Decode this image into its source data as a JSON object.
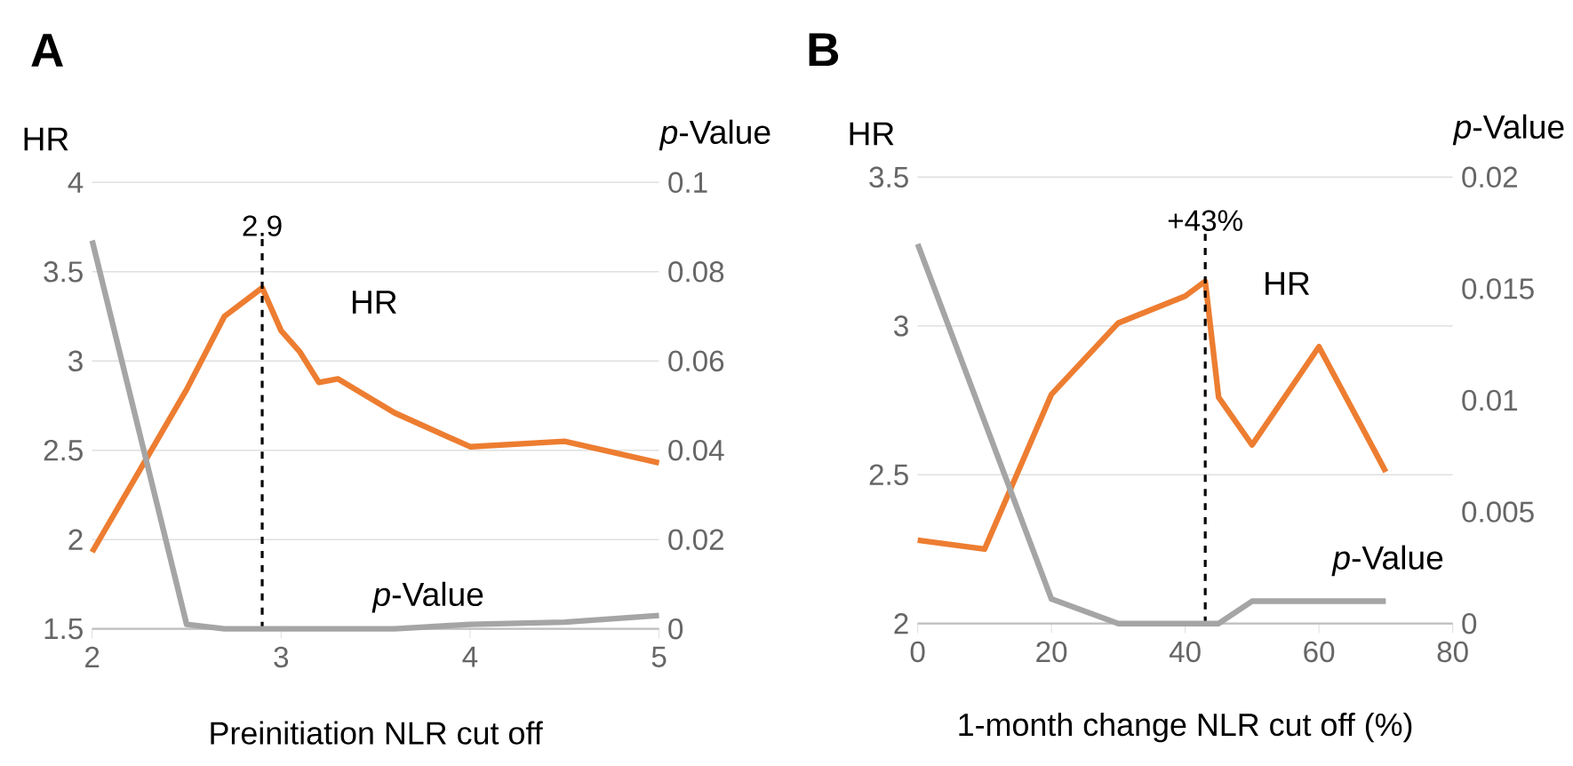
{
  "chart_data": [
    {
      "type": "line",
      "title": "A",
      "xlabel": "Preinitiation NLR cut off",
      "ylabel": "HR",
      "y2label": "*p*-Value",
      "xlim": [
        2,
        5
      ],
      "xticks": [
        2,
        3,
        4,
        5
      ],
      "ylim": [
        1.5,
        4
      ],
      "yticks": [
        1.5,
        2,
        2.5,
        3,
        3.5,
        4
      ],
      "y2lim": [
        0,
        0.1
      ],
      "y2ticks": [
        0,
        0.02,
        0.04,
        0.06,
        0.08,
        0.1
      ],
      "grid": "y",
      "series": [
        {
          "color": "#ed7d31",
          "x": [
            2,
            2.5,
            2.7,
            2.9,
            3.0,
            3.1,
            3.2,
            3.3,
            3.6,
            4.0,
            4.5,
            5
          ],
          "values": [
            1.93,
            2.84,
            3.25,
            3.41,
            3.17,
            3.05,
            2.88,
            2.9,
            2.71,
            2.52,
            2.55,
            2.43
          ]
        },
        {
          "color": "#a5a5a5",
          "axis": "y2",
          "x": [
            2,
            2.5,
            2.7,
            3.0,
            3.6,
            4.0,
            4.5,
            5
          ],
          "values": [
            0.087,
            0.001,
            0,
            0,
            0,
            0.001,
            0.0015,
            0.003
          ]
        }
      ],
      "ref_lines": [
        {
          "axis": "x",
          "value": 2.9,
          "label": "2.9",
          "color": "#000000",
          "line_style": "dashed"
        }
      ],
      "annotations": [
        "HR",
        "*p*-Value"
      ]
    },
    {
      "type": "line",
      "title": "B",
      "xlabel": "1-month change NLR cut off (%)",
      "ylabel": "HR",
      "y2label": "*p*-Value",
      "xlim": [
        0,
        80
      ],
      "xticks": [
        0,
        20,
        40,
        60,
        80
      ],
      "ylim": [
        2,
        3.5
      ],
      "yticks": [
        2,
        2.5,
        3,
        3.5
      ],
      "y2lim": [
        0,
        0.02
      ],
      "y2ticks": [
        0,
        0.005,
        0.01,
        0.015,
        0.02
      ],
      "grid": "y",
      "series": [
        {
          "color": "#ed7d31",
          "x": [
            0,
            10,
            20,
            30,
            40,
            43,
            45,
            50,
            60,
            70
          ],
          "values": [
            2.28,
            2.25,
            2.77,
            3.01,
            3.1,
            3.15,
            2.76,
            2.6,
            2.93,
            2.51
          ]
        },
        {
          "color": "#a5a5a5",
          "axis": "y2",
          "x": [
            0,
            20,
            30,
            45,
            50,
            70
          ],
          "values": [
            0.017,
            0.0011,
            0,
            0,
            0.001,
            0.001
          ]
        }
      ],
      "ref_lines": [
        {
          "axis": "x",
          "value": 43,
          "label": "+43%",
          "color": "#000000",
          "line_style": "dashed"
        }
      ],
      "annotations": [
        "HR",
        "*p*-Value"
      ]
    }
  ]
}
